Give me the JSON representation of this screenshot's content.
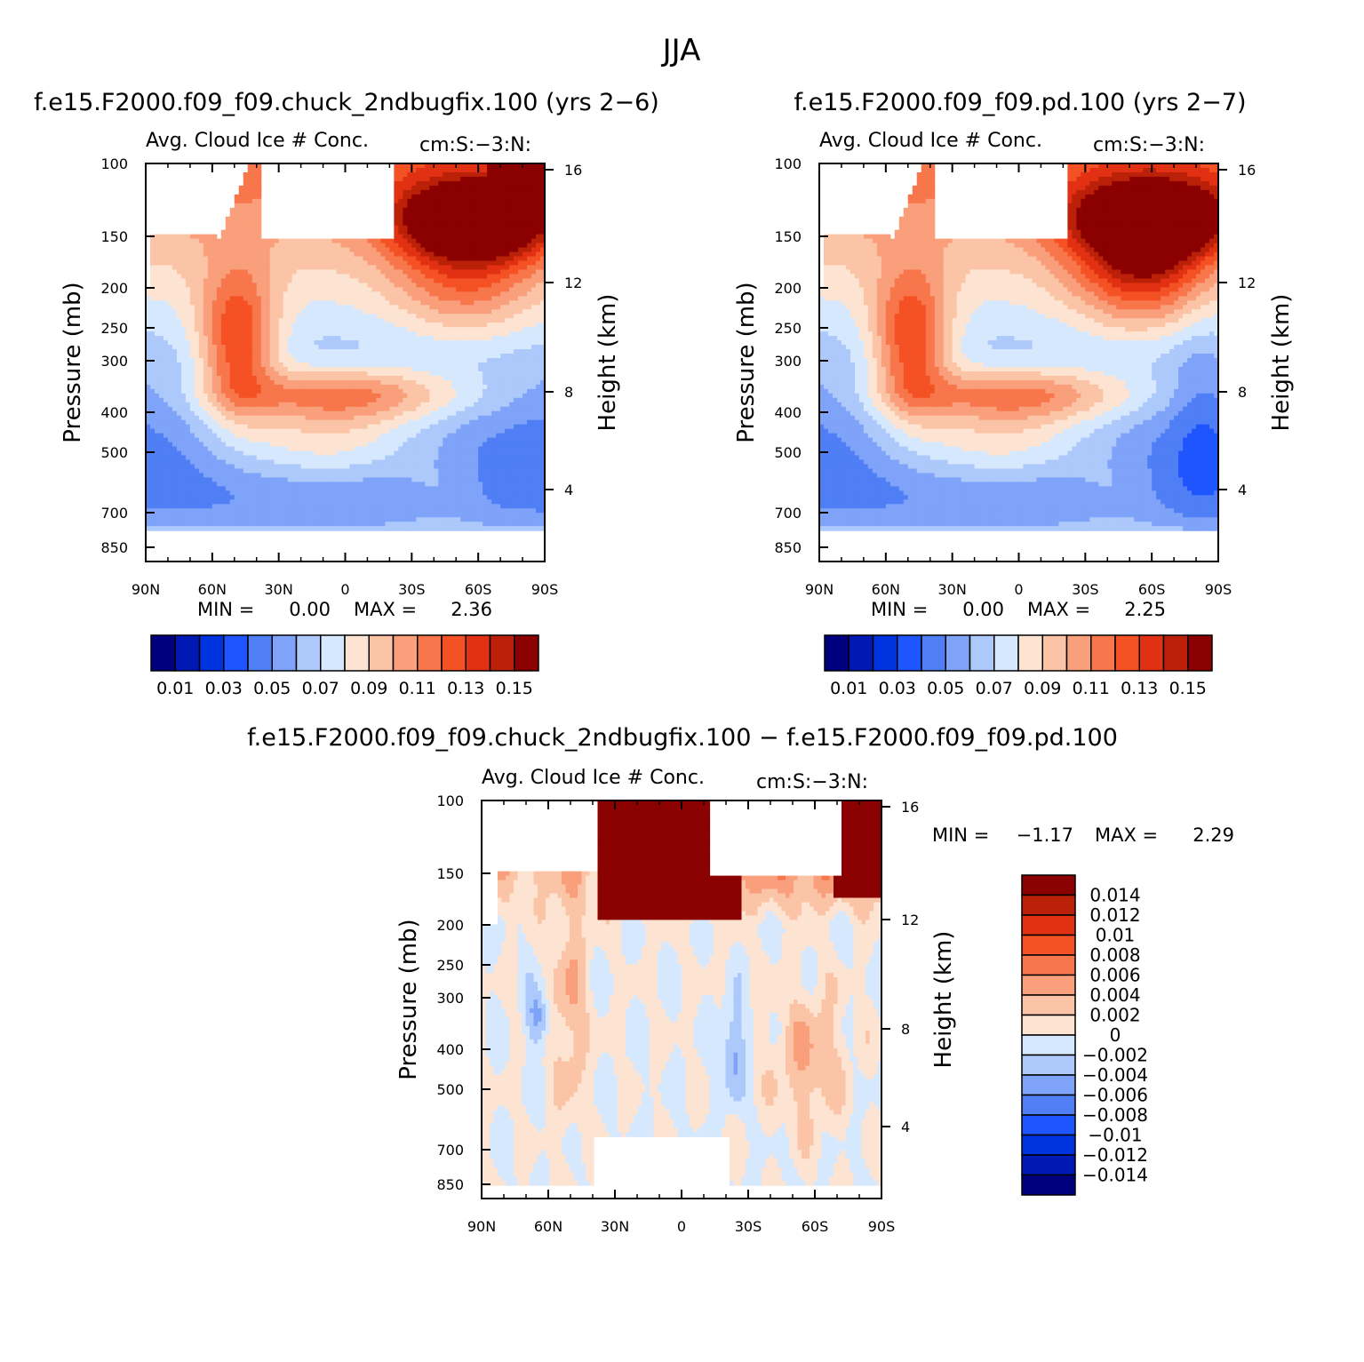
{
  "figure_title": "JJA",
  "colors": {
    "palette_seq": [
      "#00007f",
      "#0019b4",
      "#0033e0",
      "#1f55ff",
      "#4f7ef5",
      "#7fa3f8",
      "#adc8fb",
      "#d6e8fd",
      "#fde4d2",
      "#fbc4a6",
      "#f99f7b",
      "#f8764b",
      "#f45124",
      "#e23013",
      "#bb2108",
      "#8b0000"
    ],
    "palette_div": [
      "#00007f",
      "#0019b4",
      "#0033e0",
      "#1f55ff",
      "#4f7ef5",
      "#7fa3f8",
      "#adc8fb",
      "#d6e8fd",
      "#fde4d2",
      "#fbc4a6",
      "#f99f7b",
      "#f8764b",
      "#f45124",
      "#e23013",
      "#bb2108",
      "#8b0000"
    ]
  },
  "chart_data": [
    {
      "id": "panel1",
      "type": "heatmap",
      "title": "f.e15.F2000.f09_f09.chuck_2ndbugfix.100 (yrs 2−6)",
      "subtitle_left": "Avg. Cloud Ice # Conc.",
      "subtitle_right": "cm:S:−3:N:",
      "ylabel": "Pressure (mb)",
      "y2label": "Height (km)",
      "xticks": [
        "90N",
        "60N",
        "30N",
        "0",
        "30S",
        "60S",
        "90S"
      ],
      "yticks": [
        "100",
        "150",
        "200",
        "250",
        "300",
        "400",
        "500",
        "700",
        "850"
      ],
      "y2ticks": [
        "16",
        "12",
        "8",
        "4"
      ],
      "stats": {
        "min_label": "MIN =",
        "min": "0.00",
        "max_label": "MAX =",
        "max": "2.36"
      },
      "colorbar": {
        "labels": [
          "0.01",
          "0.03",
          "0.05",
          "0.07",
          "0.09",
          "0.11",
          "0.13",
          "0.15"
        ]
      }
    },
    {
      "id": "panel2",
      "type": "heatmap",
      "title": "f.e15.F2000.f09_f09.pd.100 (yrs 2−7)",
      "subtitle_left": "Avg. Cloud Ice # Conc.",
      "subtitle_right": "cm:S:−3:N:",
      "ylabel": "Pressure (mb)",
      "y2label": "Height (km)",
      "xticks": [
        "90N",
        "60N",
        "30N",
        "0",
        "30S",
        "60S",
        "90S"
      ],
      "yticks": [
        "100",
        "150",
        "200",
        "250",
        "300",
        "400",
        "500",
        "700",
        "850"
      ],
      "y2ticks": [
        "16",
        "12",
        "8",
        "4"
      ],
      "stats": {
        "min_label": "MIN =",
        "min": "0.00",
        "max_label": "MAX =",
        "max": "2.25"
      },
      "colorbar": {
        "labels": [
          "0.01",
          "0.03",
          "0.05",
          "0.07",
          "0.09",
          "0.11",
          "0.13",
          "0.15"
        ]
      }
    },
    {
      "id": "panel3",
      "type": "heatmap",
      "title": "f.e15.F2000.f09_f09.chuck_2ndbugfix.100 − f.e15.F2000.f09_f09.pd.100",
      "subtitle_left": "Avg. Cloud Ice # Conc.",
      "subtitle_right": "cm:S:−3:N:",
      "ylabel": "Pressure (mb)",
      "y2label": "Height (km)",
      "xticks": [
        "90N",
        "60N",
        "30N",
        "0",
        "30S",
        "60S",
        "90S"
      ],
      "yticks": [
        "100",
        "150",
        "200",
        "250",
        "300",
        "400",
        "500",
        "700",
        "850"
      ],
      "y2ticks": [
        "16",
        "12",
        "8",
        "4"
      ],
      "stats": {
        "min_label": "MIN =",
        "min": "−1.17",
        "max_label": "MAX =",
        "max": "2.29"
      },
      "colorbar": {
        "labels": [
          "0.014",
          "0.012",
          "0.01",
          "0.008",
          "0.006",
          "0.004",
          "0.002",
          "0",
          "−0.002",
          "−0.004",
          "−0.006",
          "−0.008",
          "−0.01",
          "−0.012",
          "−0.014"
        ]
      }
    }
  ]
}
